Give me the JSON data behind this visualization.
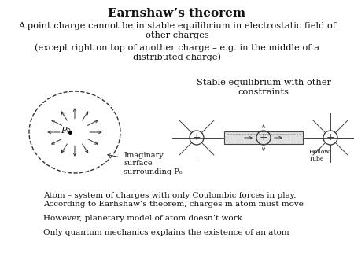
{
  "title": "Earnshaw’s theorem",
  "line1": "A point charge cannot be in stable equilibrium in electrostatic field of",
  "line2": "other charges",
  "line3": "(except right on top of another charge – e.g. in the middle of a",
  "line4": "distributed charge)",
  "stable_label_1": "Stable equilibrium with other",
  "stable_label_2": "constraints",
  "imaginary_label": "Imaginary\nsurface\nsurrounding P₀",
  "atom_line1": "Atom – system of charges with only Coulombic forces in play.",
  "atom_line2": "According to Earhshaw’s theorem, charges in atom must move",
  "planetary_line": "However, planetary model of atom doesn’t work",
  "quantum_line": "Only quantum mechanics explains the existence of an atom",
  "hollow_tube": "Hollow\nTube",
  "text_color": "#111111",
  "title_fontsize": 11,
  "body_fontsize": 8.2,
  "small_fontsize": 7.5,
  "diagram_fontsize": 7.0
}
